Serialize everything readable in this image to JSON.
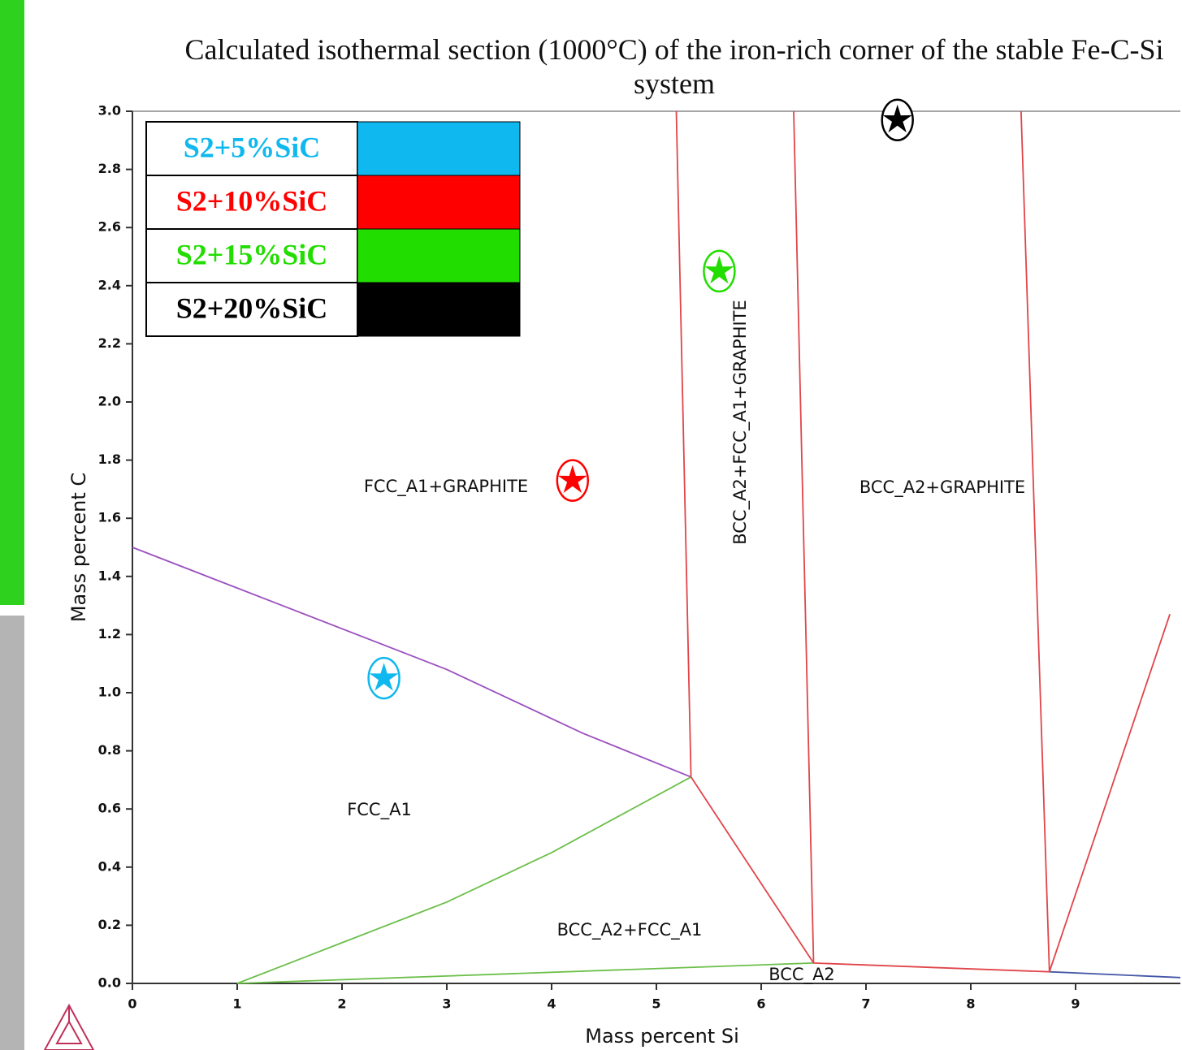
{
  "chart_data": {
    "type": "line",
    "title": "Calculated isothermal section (1000°C) of the iron-rich corner of the stable Fe-C-Si system",
    "x_label": "Mass percent Si",
    "y_label": "Mass percent C",
    "xlim": [
      0,
      10
    ],
    "ylim": [
      0,
      3
    ],
    "xticks": [
      0,
      1,
      2,
      3,
      4,
      5,
      6,
      7,
      8,
      9
    ],
    "yticks": [
      {
        "value": 0,
        "label": "0.0"
      },
      0.2,
      0.4,
      0.6,
      0.8,
      {
        "value": 1,
        "label": "1.0"
      },
      1.2,
      1.4,
      1.6,
      1.8,
      {
        "value": 2,
        "label": "2.0"
      },
      2.2,
      2.4,
      2.6,
      2.8,
      {
        "value": 3,
        "label": "3.0"
      }
    ],
    "boundaries": [
      {
        "color": "#9b4fc0",
        "x": [
          0,
          1.5,
          3,
          4.3,
          5.33
        ],
        "y": [
          1.5,
          1.29,
          1.08,
          0.86,
          0.71
        ]
      },
      {
        "color": "#6cbf4a",
        "x": [
          1,
          2,
          3,
          4,
          5.33
        ],
        "y": [
          0,
          0.14,
          0.28,
          0.45,
          0.71
        ]
      },
      {
        "color": "#6cbf4a",
        "x": [
          1,
          6.5
        ],
        "y": [
          0,
          0.07
        ]
      },
      {
        "color": "#e0454a",
        "x": [
          5.33,
          6.5,
          8.75
        ],
        "y": [
          0.71,
          0.07,
          0.04
        ]
      },
      {
        "color": "#4557a8",
        "x": [
          8.75,
          10
        ],
        "y": [
          0.04,
          0.02
        ]
      },
      {
        "color": "#e0454a",
        "x": [
          5.33,
          5.19
        ],
        "y": [
          0.71,
          3
        ]
      },
      {
        "color": "#e0454a",
        "x": [
          6.5,
          6.31
        ],
        "y": [
          0.07,
          3
        ]
      },
      {
        "color": "#e0454a",
        "x": [
          8.75,
          8.48
        ],
        "y": [
          0.04,
          3
        ]
      },
      {
        "color": "#e0454a",
        "x": [
          8.75,
          9.9
        ],
        "y": [
          0.04,
          1.27
        ]
      }
    ],
    "regions": [
      "FCC_A1+GRAPHITE",
      "BCC_A2+FCC_A1+GRAPHITE",
      "BCC_A2+GRAPHITE",
      "FCC_A1",
      "BCC_A2+FCC_A1",
      "BCC_A2"
    ],
    "samples": [
      {
        "name": "S2+5%SiC",
        "color": "#0fb8ee",
        "x": 2.4,
        "y": 1.05
      },
      {
        "name": "S2+10%SiC",
        "color": "#ff0000",
        "x": 4.2,
        "y": 1.73
      },
      {
        "name": "S2+15%SiC",
        "color": "#22dd00",
        "x": 5.6,
        "y": 2.45
      },
      {
        "name": "S2+20%SiC",
        "color": "#000000",
        "x": 7.3,
        "y": 2.97
      }
    ]
  }
}
